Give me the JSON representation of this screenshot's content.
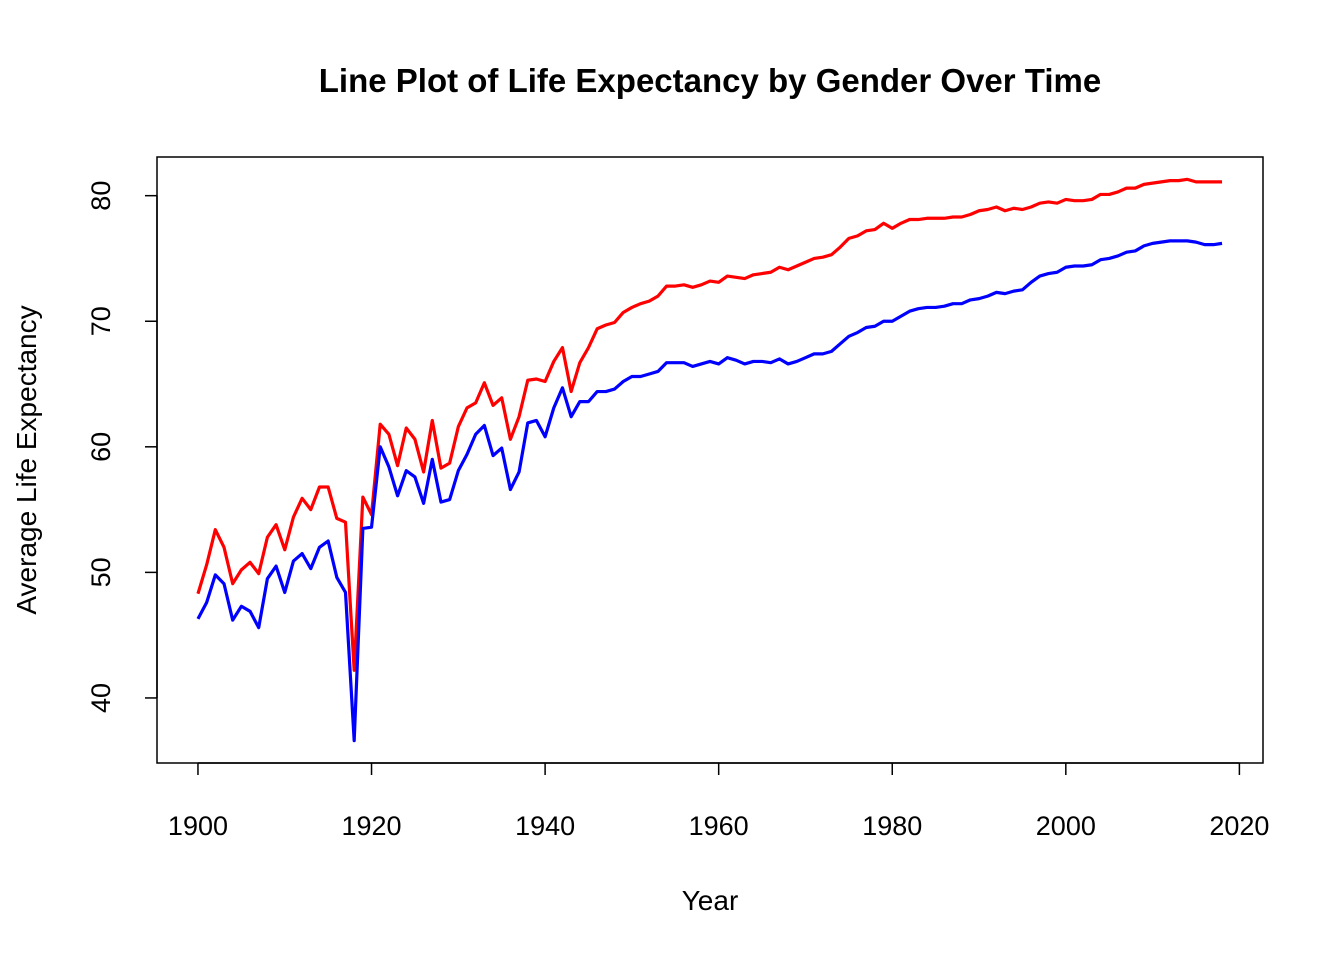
{
  "chart_data": {
    "type": "line",
    "title": "Line Plot of Life Expectancy by Gender Over Time",
    "x_label": "Year",
    "y_label": "Average Life Expectancy",
    "x": [
      1900,
      1901,
      1902,
      1903,
      1904,
      1905,
      1906,
      1907,
      1908,
      1909,
      1910,
      1911,
      1912,
      1913,
      1914,
      1915,
      1916,
      1917,
      1918,
      1919,
      1920,
      1921,
      1922,
      1923,
      1924,
      1925,
      1926,
      1927,
      1928,
      1929,
      1930,
      1931,
      1932,
      1933,
      1934,
      1935,
      1936,
      1937,
      1938,
      1939,
      1940,
      1941,
      1942,
      1943,
      1944,
      1945,
      1946,
      1947,
      1948,
      1949,
      1950,
      1951,
      1952,
      1953,
      1954,
      1955,
      1956,
      1957,
      1958,
      1959,
      1960,
      1961,
      1962,
      1963,
      1964,
      1965,
      1966,
      1967,
      1968,
      1969,
      1970,
      1971,
      1972,
      1973,
      1974,
      1975,
      1976,
      1977,
      1978,
      1979,
      1980,
      1981,
      1982,
      1983,
      1984,
      1985,
      1986,
      1987,
      1988,
      1989,
      1990,
      1991,
      1992,
      1993,
      1994,
      1995,
      1996,
      1997,
      1998,
      1999,
      2000,
      2001,
      2002,
      2003,
      2004,
      2005,
      2006,
      2007,
      2008,
      2009,
      2010,
      2011,
      2012,
      2013,
      2014,
      2015,
      2016,
      2017,
      2018
    ],
    "series": [
      {
        "color": "#ff0000",
        "values": [
          48.3,
          50.6,
          53.4,
          52.0,
          49.1,
          50.2,
          50.8,
          49.9,
          52.8,
          53.8,
          51.8,
          54.4,
          55.9,
          55.0,
          56.8,
          56.8,
          54.3,
          54.0,
          42.2,
          56.0,
          54.6,
          61.8,
          61.0,
          58.5,
          61.5,
          60.6,
          58.0,
          62.1,
          58.3,
          58.7,
          61.6,
          63.1,
          63.5,
          65.1,
          63.3,
          63.9,
          60.6,
          62.4,
          65.3,
          65.4,
          65.2,
          66.8,
          67.9,
          64.4,
          66.7,
          67.9,
          69.4,
          69.7,
          69.9,
          70.7,
          71.1,
          71.4,
          71.6,
          72.0,
          72.8,
          72.8,
          72.9,
          72.7,
          72.9,
          73.2,
          73.1,
          73.6,
          73.5,
          73.4,
          73.7,
          73.8,
          73.9,
          74.3,
          74.1,
          74.4,
          74.7,
          75.0,
          75.1,
          75.3,
          75.9,
          76.6,
          76.8,
          77.2,
          77.3,
          77.8,
          77.4,
          77.8,
          78.1,
          78.1,
          78.2,
          78.2,
          78.2,
          78.3,
          78.3,
          78.5,
          78.8,
          78.9,
          79.1,
          78.8,
          79.0,
          78.9,
          79.1,
          79.4,
          79.5,
          79.4,
          79.7,
          79.6,
          79.6,
          79.7,
          80.1,
          80.1,
          80.3,
          80.6,
          80.6,
          80.9,
          81.0,
          81.1,
          81.2,
          81.2,
          81.3,
          81.1,
          81.1,
          81.1,
          81.1
        ]
      },
      {
        "color": "#0000ff",
        "values": [
          46.3,
          47.6,
          49.8,
          49.1,
          46.2,
          47.3,
          46.9,
          45.6,
          49.5,
          50.5,
          48.4,
          50.9,
          51.5,
          50.3,
          52.0,
          52.5,
          49.6,
          48.4,
          36.6,
          53.5,
          53.6,
          60.0,
          58.4,
          56.1,
          58.1,
          57.6,
          55.5,
          59.0,
          55.6,
          55.8,
          58.1,
          59.4,
          61.0,
          61.7,
          59.3,
          59.9,
          56.6,
          58.0,
          61.9,
          62.1,
          60.8,
          63.1,
          64.7,
          62.4,
          63.6,
          63.6,
          64.4,
          64.4,
          64.6,
          65.2,
          65.6,
          65.6,
          65.8,
          66.0,
          66.7,
          66.7,
          66.7,
          66.4,
          66.6,
          66.8,
          66.6,
          67.1,
          66.9,
          66.6,
          66.8,
          66.8,
          66.7,
          67.0,
          66.6,
          66.8,
          67.1,
          67.4,
          67.4,
          67.6,
          68.2,
          68.8,
          69.1,
          69.5,
          69.6,
          70.0,
          70.0,
          70.4,
          70.8,
          71.0,
          71.1,
          71.1,
          71.2,
          71.4,
          71.4,
          71.7,
          71.8,
          72.0,
          72.3,
          72.2,
          72.4,
          72.5,
          73.1,
          73.6,
          73.8,
          73.9,
          74.3,
          74.4,
          74.4,
          74.5,
          74.9,
          75.0,
          75.2,
          75.5,
          75.6,
          76.0,
          76.2,
          76.3,
          76.4,
          76.4,
          76.4,
          76.3,
          76.1,
          76.1,
          76.2
        ]
      }
    ],
    "xlim": [
      1895.28,
      2022.72
    ],
    "ylim": [
      34.82,
      83.08
    ],
    "xticks": [
      1900,
      1920,
      1940,
      1960,
      1980,
      2000,
      2020
    ],
    "yticks": [
      40,
      50,
      60,
      70,
      80
    ],
    "grid": false
  }
}
